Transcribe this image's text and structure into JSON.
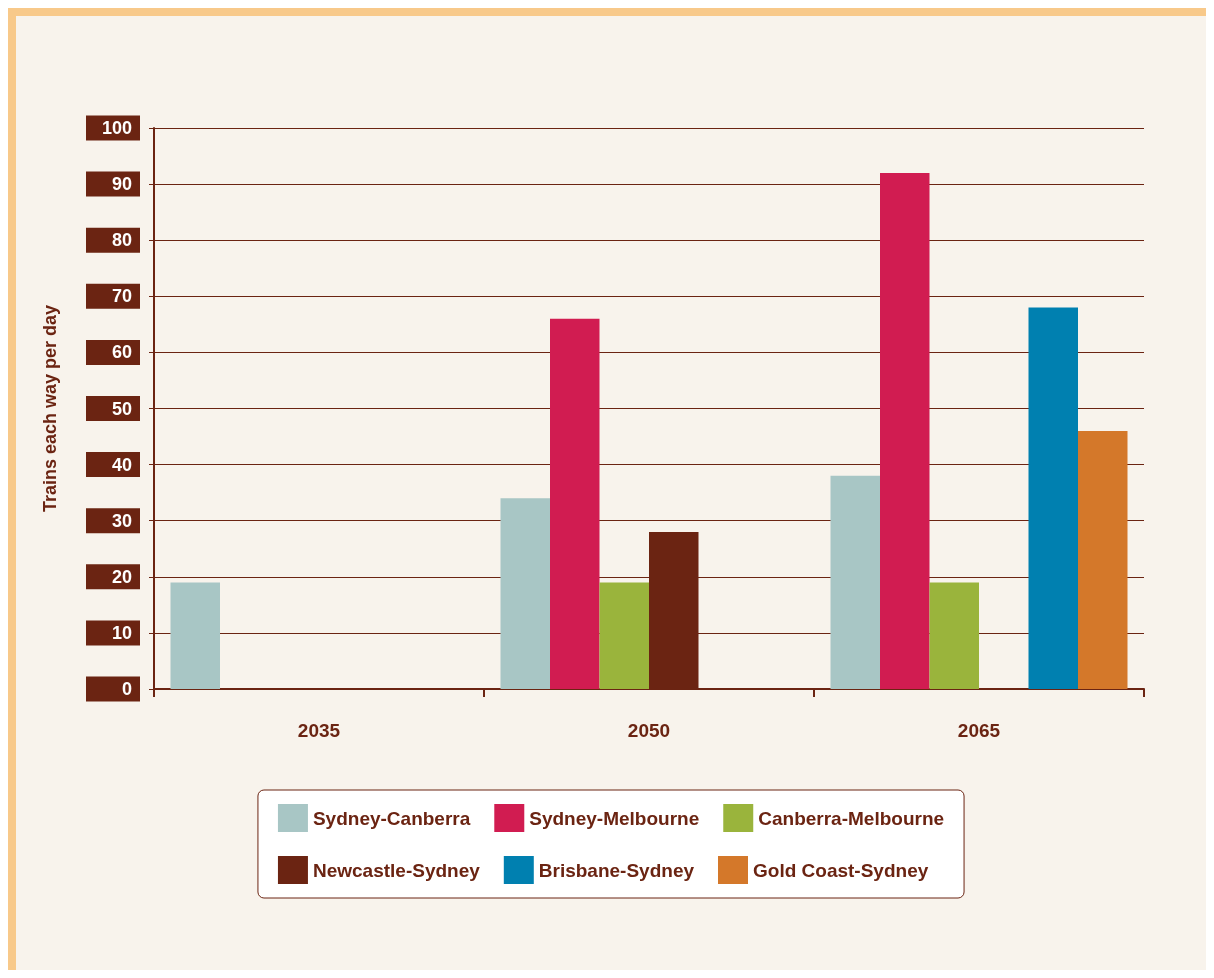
{
  "chart_data": {
    "type": "bar",
    "ylabel": "Trains each way per day",
    "categories": [
      "2035",
      "2050",
      "2065"
    ],
    "ylim": [
      0,
      100
    ],
    "yticks": [
      0,
      10,
      20,
      30,
      40,
      50,
      60,
      70,
      80,
      90,
      100
    ],
    "grid": "y",
    "legend": "bottom",
    "series": [
      {
        "name": "Sydney-Canberra",
        "color": "#a8c6c5",
        "values": [
          19,
          34,
          38
        ]
      },
      {
        "name": "Sydney-Melbourne",
        "color": "#d11c51",
        "values": [
          null,
          66,
          92
        ]
      },
      {
        "name": "Canberra-Melbourne",
        "color": "#9ab43c",
        "values": [
          null,
          19,
          19
        ]
      },
      {
        "name": "Newcastle-Sydney",
        "color": "#6b2412",
        "values": [
          null,
          28,
          null
        ]
      },
      {
        "name": "Brisbane-Sydney",
        "color": "#0080b0",
        "values": [
          null,
          null,
          68
        ]
      },
      {
        "name": "Gold Coast-Sydney",
        "color": "#d4782a",
        "values": [
          null,
          null,
          46
        ]
      }
    ]
  }
}
